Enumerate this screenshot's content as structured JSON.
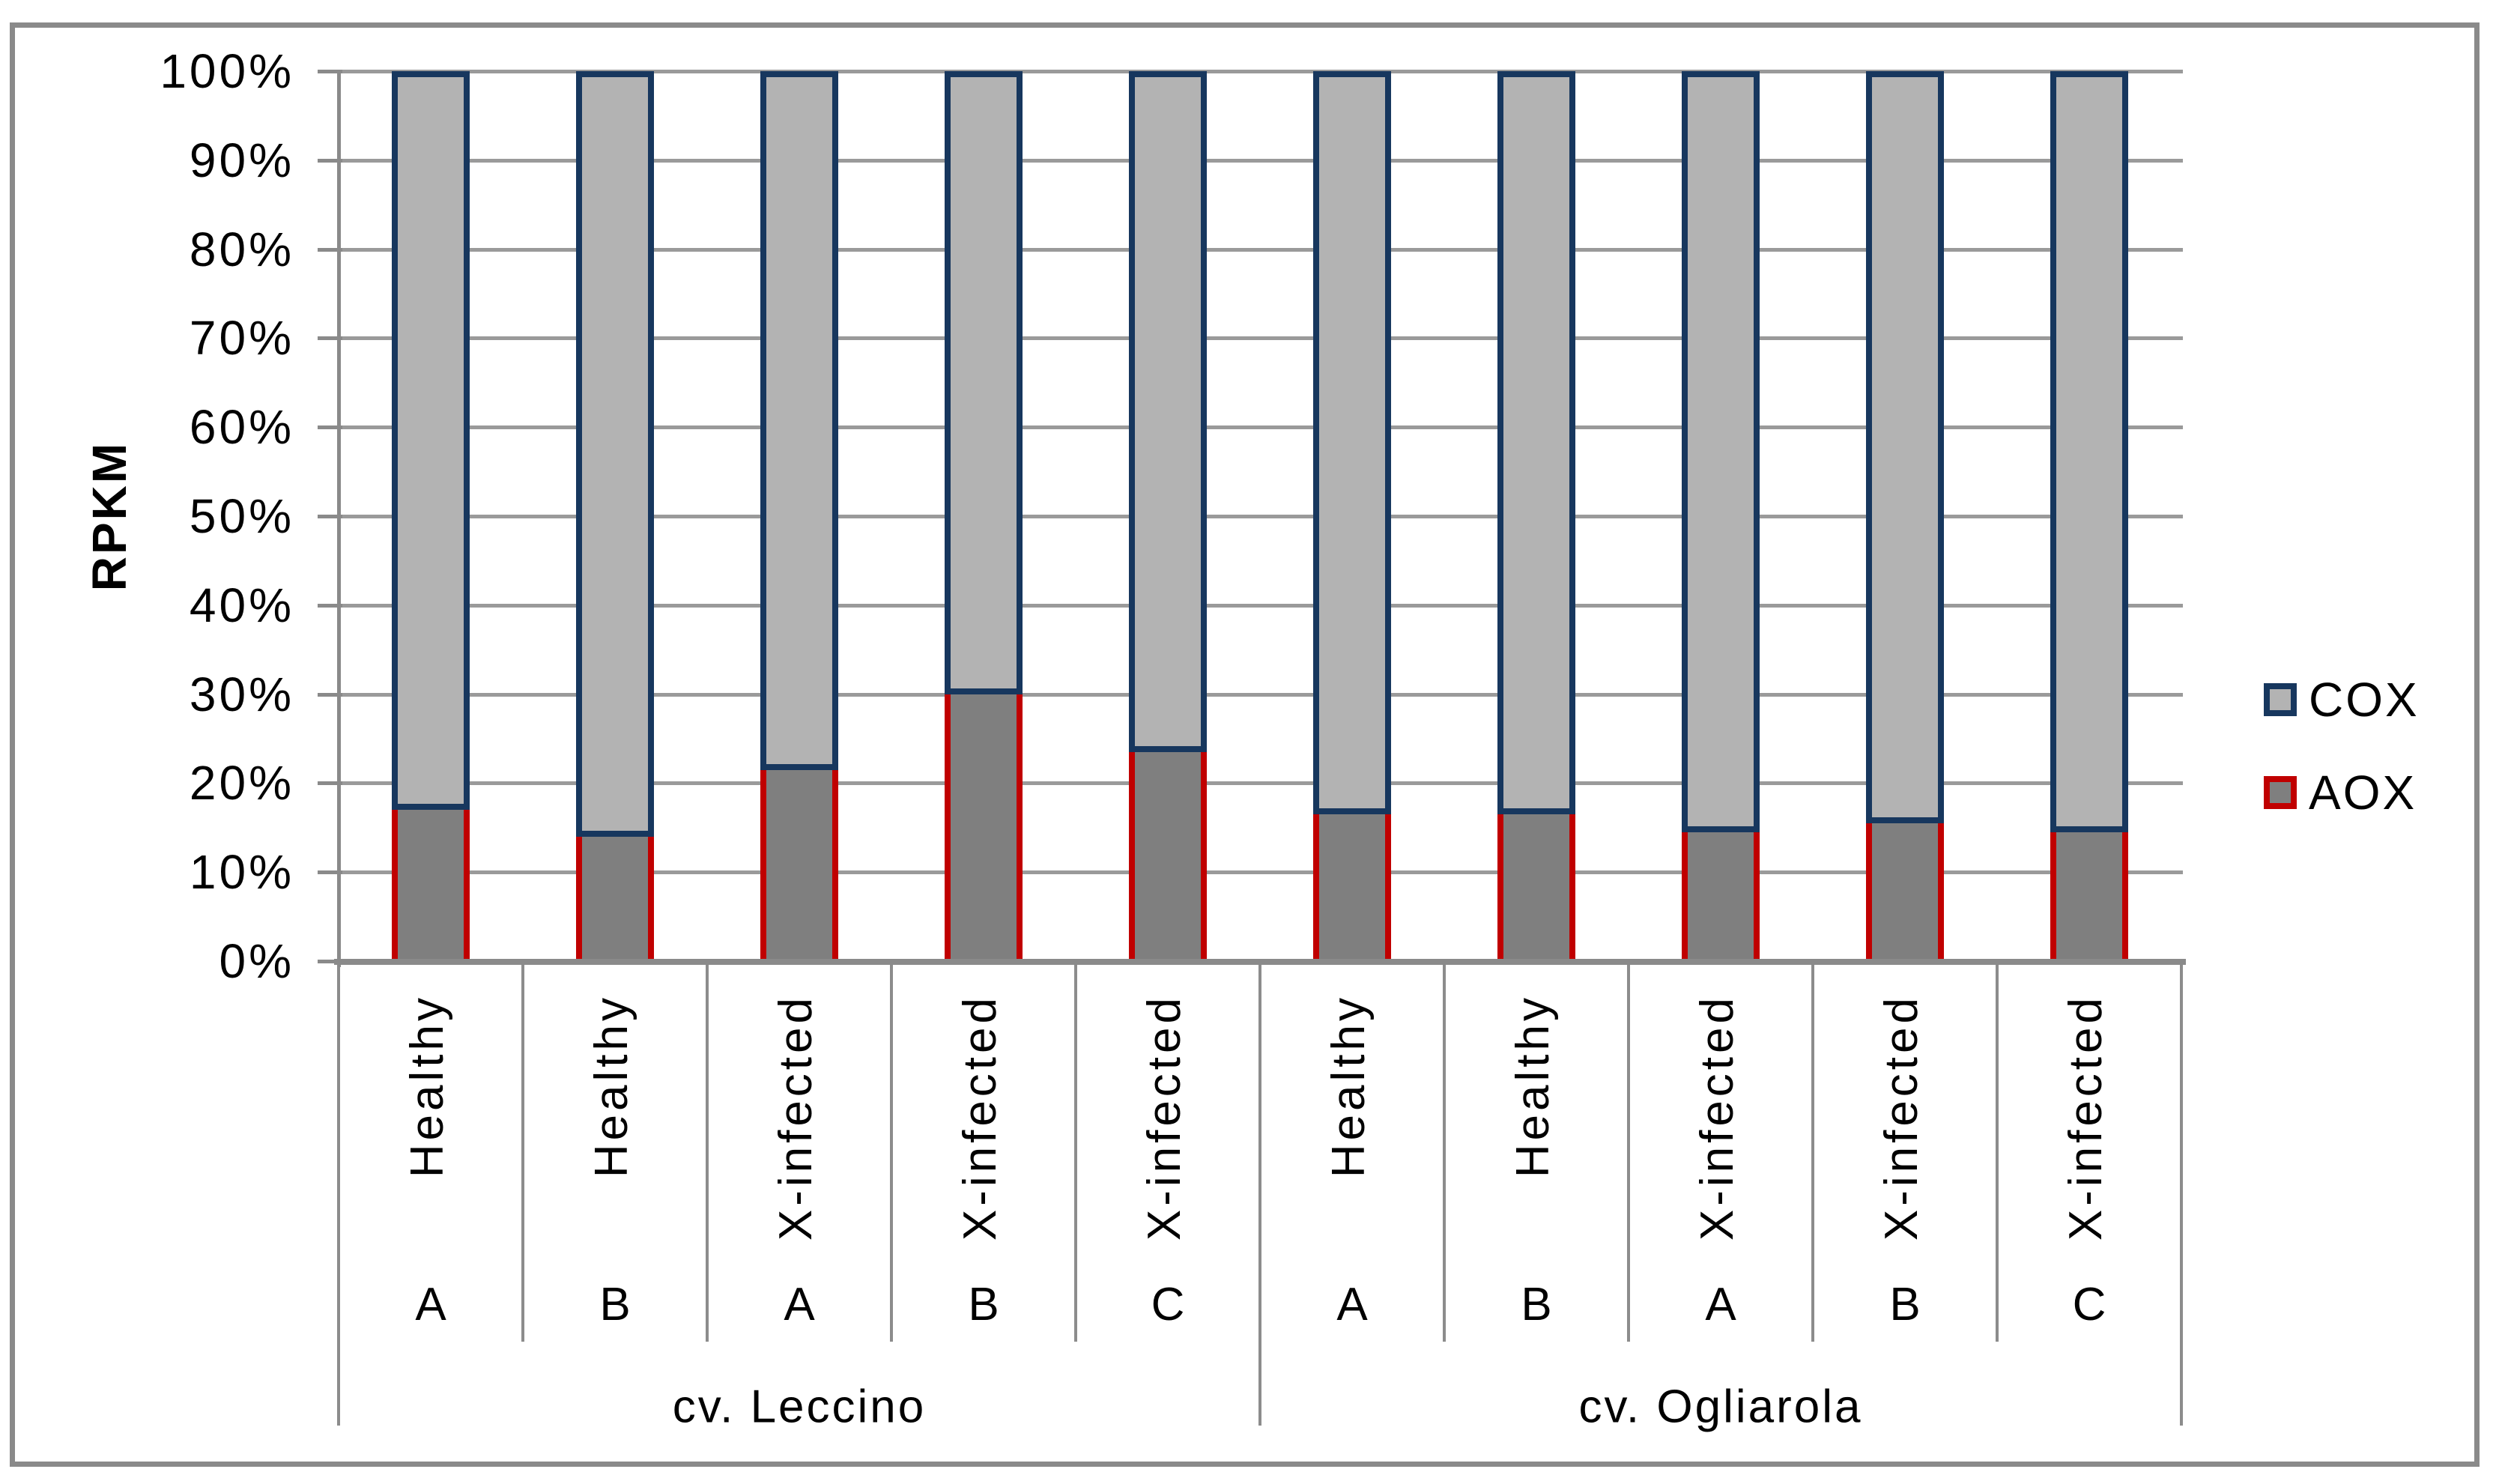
{
  "y_axis": {
    "title": "RPKM",
    "tick_labels": [
      "100%",
      "90%",
      "80%",
      "70%",
      "60%",
      "50%",
      "40%",
      "30%",
      "20%",
      "10%",
      "0%"
    ]
  },
  "x_axis": {
    "groups": [
      {
        "label": "cv. Leccino",
        "categories": [
          {
            "condition": "Healthy",
            "replicate": "A"
          },
          {
            "condition": "Healthy",
            "replicate": "B"
          },
          {
            "condition": "X-infected",
            "replicate": "A"
          },
          {
            "condition": "X-infected",
            "replicate": "B"
          },
          {
            "condition": "X-infected",
            "replicate": "C"
          }
        ]
      },
      {
        "label": "cv. Ogliarola",
        "categories": [
          {
            "condition": "Healthy",
            "replicate": "A"
          },
          {
            "condition": "Healthy",
            "replicate": "B"
          },
          {
            "condition": "X-infected",
            "replicate": "A"
          },
          {
            "condition": "X-infected",
            "replicate": "B"
          },
          {
            "condition": "X-infected",
            "replicate": "C"
          }
        ]
      }
    ]
  },
  "legend": {
    "position": "right",
    "items": [
      {
        "label": "COX",
        "fill": "#b3b3b3",
        "border": "#17375e"
      },
      {
        "label": "AOX",
        "fill": "#7f7f7f",
        "border": "#c00000"
      }
    ]
  },
  "colors": {
    "cox_fill": "#b3b3b3",
    "cox_border": "#17375e",
    "aox_fill": "#7f7f7f",
    "aox_border": "#c00000",
    "gridline": "#9a9a9a",
    "axis": "#8a8a8a",
    "separator": "#8c8c8c",
    "frame": "#8a8a8a",
    "text": "#000000"
  },
  "chart_data": {
    "type": "bar",
    "subtype": "stacked-100-percent",
    "title": "",
    "xlabel": "",
    "ylabel": "RPKM",
    "y_unit": "%",
    "ylim": [
      0,
      100
    ],
    "y_tick_step": 10,
    "grid": true,
    "legend_position": "right",
    "categories": [
      "cv. Leccino / Healthy / A",
      "cv. Leccino / Healthy / B",
      "cv. Leccino / X-infected / A",
      "cv. Leccino / X-infected / B",
      "cv. Leccino / X-infected / C",
      "cv. Ogliarola / Healthy / A",
      "cv. Ogliarola / Healthy / B",
      "cv. Ogliarola / X-infected / A",
      "cv. Ogliarola / X-infected / B",
      "cv. Ogliarola / X-infected / C"
    ],
    "series": [
      {
        "name": "AOX",
        "values": [
          17,
          14,
          21.5,
          30,
          23.5,
          16.5,
          16.5,
          14.5,
          15.5,
          14.5
        ]
      },
      {
        "name": "COX",
        "values": [
          83,
          86,
          78.5,
          70,
          76.5,
          83.5,
          83.5,
          85.5,
          84.5,
          85.5
        ]
      }
    ]
  }
}
